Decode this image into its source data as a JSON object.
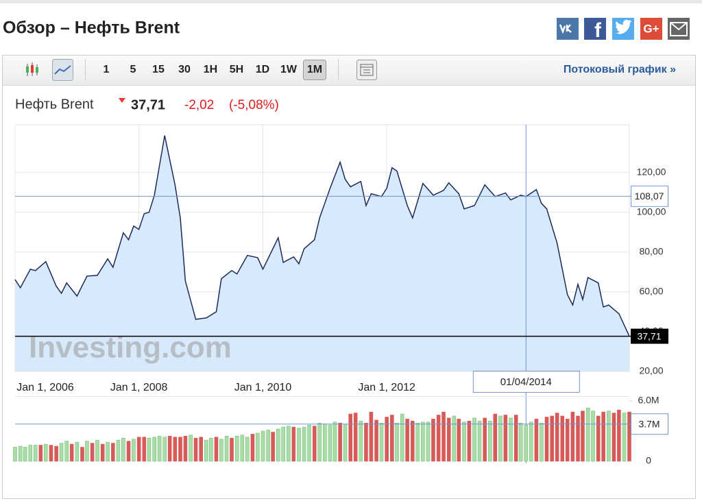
{
  "header": {
    "title": "Обзор – Нефть Brent",
    "share": [
      "f",
      "G+"
    ]
  },
  "toolbar": {
    "intervals": [
      "1",
      "5",
      "15",
      "30",
      "1H",
      "5H",
      "1D",
      "1W",
      "1M"
    ],
    "active": "1M",
    "stream_link": "Потоковый график »"
  },
  "quote": {
    "name": "Нефть Brent",
    "price": "37,71",
    "change": "-2,02",
    "change_percent": "(-5,08%)"
  },
  "chart_data": [
    {
      "type": "area",
      "x": [
        "2006-01-01",
        "2006-02-01",
        "2006-04-01",
        "2006-05-01",
        "2006-07-01",
        "2006-09-01",
        "2006-10-01",
        "2006-11-01",
        "2007-01-01",
        "2007-03-01",
        "2007-05-01",
        "2007-07-01",
        "2007-08-01",
        "2007-10-01",
        "2007-11-01",
        "2007-12-01",
        "2008-01-01",
        "2008-02-01",
        "2008-03-01",
        "2008-04-01",
        "2008-06-01",
        "2008-08-01",
        "2008-09-01",
        "2008-10-01",
        "2008-12-01",
        "2009-02-01",
        "2009-04-01",
        "2009-05-01",
        "2009-07-01",
        "2009-08-01",
        "2009-10-01",
        "2009-12-01",
        "2010-01-01",
        "2010-04-01",
        "2010-05-01",
        "2010-07-01",
        "2010-08-01",
        "2010-09-01",
        "2010-11-01",
        "2010-12-01",
        "2011-02-01",
        "2011-04-01",
        "2011-05-01",
        "2011-06-01",
        "2011-08-01",
        "2011-09-01",
        "2011-10-01",
        "2011-12-01",
        "2012-01-01",
        "2012-02-01",
        "2012-03-01",
        "2012-05-01",
        "2012-06-01",
        "2012-08-01",
        "2012-10-01",
        "2012-12-01",
        "2013-01-01",
        "2013-03-01",
        "2013-04-01",
        "2013-06-01",
        "2013-08-01",
        "2013-10-01",
        "2013-12-01",
        "2014-01-01",
        "2014-03-01",
        "2014-04-01",
        "2014-06-01",
        "2014-07-01",
        "2014-08-01",
        "2014-10-01",
        "2014-12-01",
        "2015-01-01",
        "2015-02-01",
        "2015-03-01",
        "2015-04-01",
        "2015-06-01",
        "2015-07-01",
        "2015-08-01",
        "2015-10-01",
        "2015-12-01"
      ],
      "values": [
        66.2,
        62.1,
        71.4,
        70.7,
        75.2,
        62.8,
        59.3,
        64.5,
        57.9,
        67.9,
        68.3,
        76.6,
        72.4,
        89.7,
        86.2,
        93.1,
        91.4,
        99.3,
        100,
        108.6,
        138.6,
        113.8,
        97.2,
        65.5,
        46.2,
        46.9,
        50,
        66.6,
        70.7,
        69,
        78.3,
        77.2,
        71.4,
        87.2,
        74.8,
        77.6,
        74.1,
        81.7,
        86.2,
        97.2,
        112.1,
        125.2,
        116.6,
        112.8,
        115.5,
        103.4,
        109.3,
        107.9,
        112.1,
        122.4,
        120.7,
        103.4,
        97.2,
        114.5,
        108.6,
        111,
        114.8,
        109.3,
        101.7,
        103.4,
        113.8,
        107.9,
        109.7,
        106.2,
        108.6,
        107.9,
        111.4,
        104.5,
        101.7,
        84.5,
        58.6,
        53.4,
        63.8,
        56.2,
        67.2,
        64.5,
        52.4,
        53.4,
        49,
        37.71
      ],
      "color": "#1b2a5b",
      "fill": "#d8e9fb",
      "xlim": [
        "2006-01-01",
        "2015-12-01"
      ],
      "ylim": [
        20,
        144
      ],
      "xticks": [
        {
          "value": "2006-01-01",
          "label": "Jan 1, 2006"
        },
        {
          "value": "2008-01-01",
          "label": "Jan 1, 2008"
        },
        {
          "value": "2010-01-01",
          "label": "Jan 1, 2010"
        },
        {
          "value": "2012-01-01",
          "label": "Jan 1, 2012"
        }
      ],
      "yticks": [
        {
          "value": 20,
          "label": "20,00"
        },
        {
          "value": 40,
          "label": "40,00"
        },
        {
          "value": 60,
          "label": "60,00"
        },
        {
          "value": 80,
          "label": "80,00"
        },
        {
          "value": 100,
          "label": "100,00"
        },
        {
          "value": 120,
          "label": "120,00"
        }
      ],
      "grid": true,
      "crosshair": {
        "x": "2014-04-01",
        "x_label": "01/04/2014",
        "y": 108.07,
        "y_label": "108,07"
      },
      "last": {
        "value": 37.71,
        "label": "37,71"
      },
      "watermark": "Investing.com"
    },
    {
      "type": "bar",
      "x": [
        "2006-01-01",
        "2006-02-01",
        "2006-03-01",
        "2006-04-01",
        "2006-05-01",
        "2006-06-01",
        "2006-07-01",
        "2006-08-01",
        "2006-09-01",
        "2006-10-01",
        "2006-11-01",
        "2006-12-01",
        "2007-01-01",
        "2007-02-01",
        "2007-03-01",
        "2007-04-01",
        "2007-05-01",
        "2007-06-01",
        "2007-07-01",
        "2007-08-01",
        "2007-09-01",
        "2007-10-01",
        "2007-11-01",
        "2007-12-01",
        "2008-01-01",
        "2008-02-01",
        "2008-03-01",
        "2008-04-01",
        "2008-05-01",
        "2008-06-01",
        "2008-07-01",
        "2008-08-01",
        "2008-09-01",
        "2008-10-01",
        "2008-11-01",
        "2008-12-01",
        "2009-01-01",
        "2009-02-01",
        "2009-03-01",
        "2009-04-01",
        "2009-05-01",
        "2009-06-01",
        "2009-07-01",
        "2009-08-01",
        "2009-09-01",
        "2009-10-01",
        "2009-11-01",
        "2009-12-01",
        "2010-01-01",
        "2010-02-01",
        "2010-03-01",
        "2010-04-01",
        "2010-05-01",
        "2010-06-01",
        "2010-07-01",
        "2010-08-01",
        "2010-09-01",
        "2010-10-01",
        "2010-11-01",
        "2010-12-01",
        "2011-01-01",
        "2011-02-01",
        "2011-03-01",
        "2011-04-01",
        "2011-05-01",
        "2011-06-01",
        "2011-07-01",
        "2011-08-01",
        "2011-09-01",
        "2011-10-01",
        "2011-11-01",
        "2011-12-01",
        "2012-01-01",
        "2012-02-01",
        "2012-03-01",
        "2012-04-01",
        "2012-05-01",
        "2012-06-01",
        "2012-07-01",
        "2012-08-01",
        "2012-09-01",
        "2012-10-01",
        "2012-11-01",
        "2012-12-01",
        "2013-01-01",
        "2013-02-01",
        "2013-03-01",
        "2013-04-01",
        "2013-05-01",
        "2013-06-01",
        "2013-07-01",
        "2013-08-01",
        "2013-09-01",
        "2013-10-01",
        "2013-11-01",
        "2013-12-01",
        "2014-01-01",
        "2014-02-01",
        "2014-03-01",
        "2014-04-01",
        "2014-05-01",
        "2014-06-01",
        "2014-07-01",
        "2014-08-01",
        "2014-09-01",
        "2014-10-01",
        "2014-11-01",
        "2014-12-01",
        "2015-01-01",
        "2015-02-01",
        "2015-03-01",
        "2015-04-01",
        "2015-05-01",
        "2015-06-01",
        "2015-07-01",
        "2015-08-01",
        "2015-09-01",
        "2015-10-01",
        "2015-11-01",
        "2015-12-01"
      ],
      "values": [
        1.4,
        1.5,
        1.4,
        1.6,
        1.6,
        1.6,
        1.7,
        1.6,
        1.5,
        1.8,
        2.0,
        1.7,
        1.9,
        1.4,
        2.0,
        1.8,
        2.1,
        1.7,
        1.9,
        1.8,
        2.1,
        2.3,
        2.0,
        2.2,
        2.4,
        2.4,
        2.3,
        2.4,
        2.5,
        2.4,
        2.5,
        2.4,
        2.4,
        2.5,
        2.6,
        2.3,
        2.4,
        2.1,
        2.3,
        2.4,
        2.2,
        2.5,
        2.3,
        2.5,
        2.6,
        2.4,
        2.7,
        2.8,
        3.0,
        3.1,
        2.9,
        3.2,
        3.4,
        3.5,
        3.4,
        3.3,
        3.4,
        3.6,
        3.5,
        3.8,
        3.7,
        3.6,
        3.9,
        3.8,
        3.7,
        4.7,
        4.8,
        4.0,
        3.8,
        4.9,
        4.1,
        3.8,
        4.4,
        4.6,
        3.8,
        4.7,
        4.2,
        4.0,
        3.8,
        3.9,
        3.9,
        4.2,
        4.6,
        4.9,
        4.3,
        4.5,
        4.2,
        3.9,
        4.0,
        4.3,
        4.0,
        4.3,
        4.0,
        4.7,
        4.5,
        4.6,
        4.3,
        4.6,
        3.8,
        3.6,
        3.9,
        4.2,
        3.8,
        4.4,
        4.5,
        4.8,
        4.5,
        4.2,
        4.9,
        4.5,
        5.0,
        5.3,
        5.0,
        4.5,
        4.9,
        5.0,
        4.8,
        5.1,
        4.8,
        4.9
      ],
      "colors": [
        "#a9dca9",
        "#a9dca9",
        "#a9dca9",
        "#a9dca9",
        "#a9dca9",
        "#d65b58",
        "#a9dca9",
        "#d65b58",
        "#d65b58",
        "#a9dca9",
        "#a9dca9",
        "#d65b58",
        "#a9dca9",
        "#d65b58",
        "#a9dca9",
        "#d65b58",
        "#a9dca9",
        "#d65b58",
        "#a9dca9",
        "#d65b58",
        "#a9dca9",
        "#a9dca9",
        "#d65b58",
        "#a9dca9",
        "#d65b58",
        "#d65b58",
        "#a9dca9",
        "#a9dca9",
        "#a9dca9",
        "#a9dca9",
        "#d65b58",
        "#d65b58",
        "#d65b58",
        "#d65b58",
        "#a9dca9",
        "#d65b58",
        "#d65b58",
        "#a9dca9",
        "#a9dca9",
        "#d65b58",
        "#a9dca9",
        "#a9dca9",
        "#d65b58",
        "#a9dca9",
        "#a9dca9",
        "#a9dca9",
        "#d65b58",
        "#a9dca9",
        "#a9dca9",
        "#a9dca9",
        "#d65b58",
        "#a9dca9",
        "#a9dca9",
        "#a9dca9",
        "#d65b58",
        "#a9dca9",
        "#a9dca9",
        "#a9dca9",
        "#d65b58",
        "#a9dca9",
        "#a9dca9",
        "#a9dca9",
        "#a9dca9",
        "#d65b58",
        "#a9dca9",
        "#d65b58",
        "#d65b58",
        "#a9dca9",
        "#d65b58",
        "#d65b58",
        "#d65b58",
        "#a9dca9",
        "#d65b58",
        "#d65b58",
        "#a9dca9",
        "#a9dca9",
        "#d65b58",
        "#d65b58",
        "#a9dca9",
        "#a9dca9",
        "#a9dca9",
        "#d65b58",
        "#d65b58",
        "#d65b58",
        "#d65b58",
        "#a9dca9",
        "#d65b58",
        "#a9dca9",
        "#d65b58",
        "#a9dca9",
        "#a9dca9",
        "#d65b58",
        "#a9dca9",
        "#d65b58",
        "#a9dca9",
        "#d65b58",
        "#a9dca9",
        "#d65b58",
        "#a9dca9",
        "#a9dca9",
        "#a9dca9",
        "#d65b58",
        "#a9dca9",
        "#d65b58",
        "#d65b58",
        "#d65b58",
        "#d65b58",
        "#d65b58",
        "#d65b58",
        "#d65b58",
        "#d65b58",
        "#a9dca9",
        "#a9dca9",
        "#d65b58",
        "#d65b58",
        "#a9dca9",
        "#d65b58",
        "#d65b58",
        "#a9dca9",
        "#d65b58"
      ],
      "xlim": [
        "2006-01-01",
        "2015-12-01"
      ],
      "ylim": [
        0,
        6
      ],
      "yticks": [
        0,
        {
          "value": 6,
          "label": "6.0M"
        }
      ],
      "crosshair": {
        "y": 3.7,
        "y_label": "3.7M"
      }
    }
  ]
}
